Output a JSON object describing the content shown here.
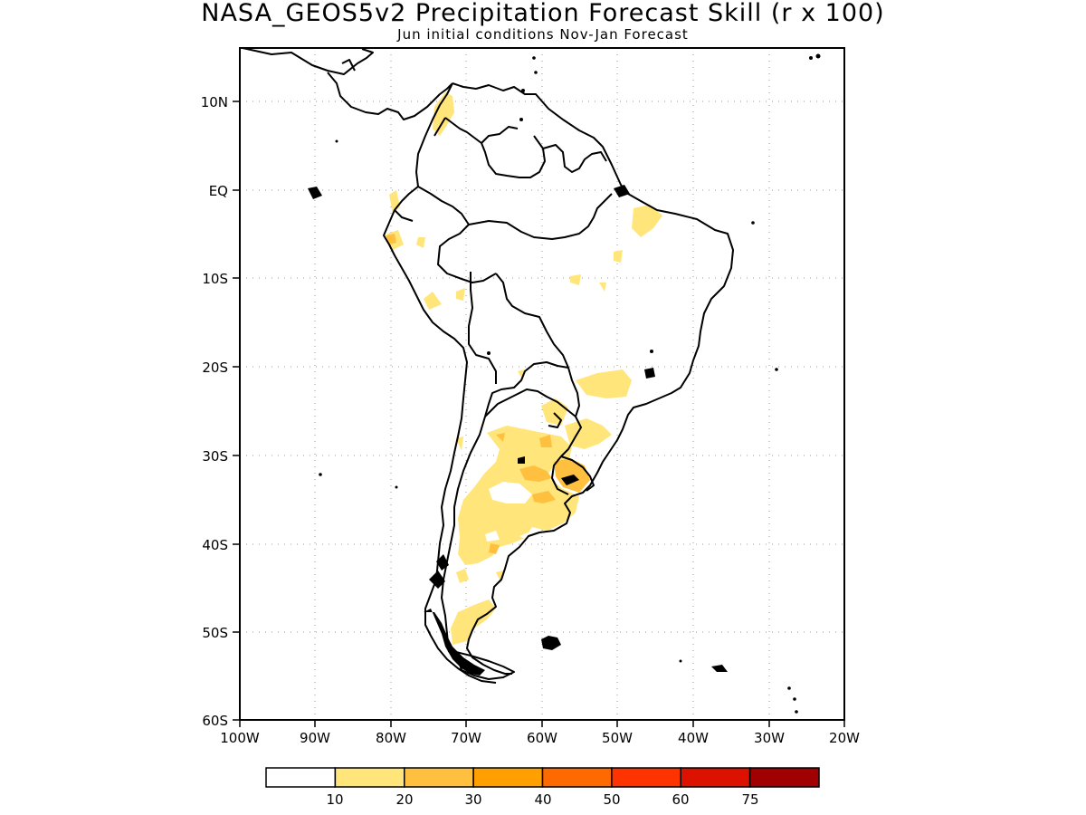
{
  "title": "NASA_GEOS5v2 Precipitation Forecast Skill (r x 100)",
  "subtitle": "Jun initial conditions  Nov-Jan Forecast",
  "map": {
    "lon_range": [
      -100,
      -20
    ],
    "lat_range": [
      -60,
      15
    ],
    "lon_ticks": [
      "100W",
      "90W",
      "80W",
      "70W",
      "60W",
      "50W",
      "40W",
      "30W",
      "20W"
    ],
    "lat_ticks": [
      "10N",
      "EQ",
      "10S",
      "20S",
      "30S",
      "40S",
      "50S",
      "60S"
    ],
    "grid": "dotted",
    "land_outline_color": "#000000"
  },
  "colorbar": {
    "colors": [
      "#ffffff",
      "#ffe57a",
      "#ffc03f",
      "#ff9f00",
      "#ff6a00",
      "#ff3300",
      "#dd1100",
      "#a00000"
    ],
    "labels": [
      "10",
      "20",
      "30",
      "40",
      "50",
      "60",
      "75"
    ]
  }
}
